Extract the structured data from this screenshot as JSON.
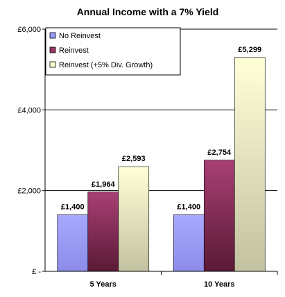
{
  "chart_data": {
    "type": "bar",
    "title": "Annual Income with a 7% Yield",
    "categories": [
      "5 Years",
      "10 Years"
    ],
    "series": [
      {
        "name": "No Reinvest",
        "values": [
          1400,
          1400
        ],
        "labels": [
          "£1,400",
          "£1,400"
        ],
        "color": "#9999ff"
      },
      {
        "name": "Reinvest",
        "values": [
          1964,
          2754
        ],
        "labels": [
          "£1,964",
          "£2,754"
        ],
        "color": "#993366"
      },
      {
        "name": "Reinvest (+5% Div. Growth)",
        "values": [
          2593,
          5299
        ],
        "labels": [
          "£2,593",
          "£5,299"
        ],
        "color": "#ffffcc"
      }
    ],
    "ylim": [
      0,
      6000
    ],
    "yticks": [
      0,
      2000,
      4000,
      6000
    ],
    "ytick_labels": [
      "£ -",
      "£2,000",
      "£4,000",
      "£6,000"
    ],
    "grid": true,
    "legend_position": "top-left"
  }
}
